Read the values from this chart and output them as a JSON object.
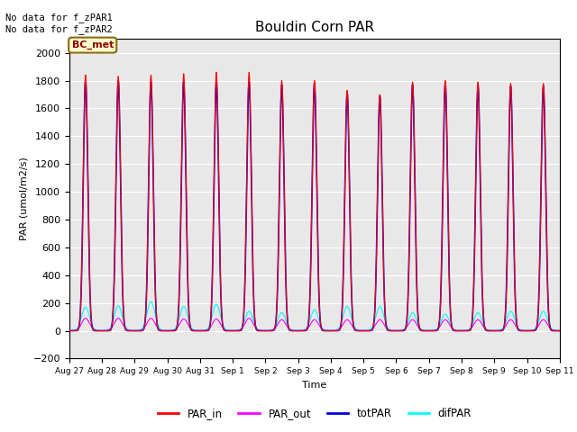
{
  "title": "Bouldin Corn PAR",
  "ylabel": "PAR (umol/m2/s)",
  "xlabel": "Time",
  "ylim": [
    -200,
    2100
  ],
  "yticks": [
    -200,
    0,
    200,
    400,
    600,
    800,
    1000,
    1200,
    1400,
    1600,
    1800,
    2000
  ],
  "annotation_text": "No data for f_zPAR1\nNo data for f_zPAR2",
  "legend_label": "BC_met",
  "legend_box_color": "#ffffcc",
  "legend_box_edge_color": "#8b6914",
  "n_days": 15,
  "colors": {
    "PAR_in": "#ff0000",
    "PAR_out": "#ff00ff",
    "totPAR": "#0000dd",
    "difPAR": "#00ffff"
  },
  "bg_color": "#e8e8e8",
  "tick_labels": [
    "Aug 27",
    "Aug 28",
    "Aug 29",
    "Aug 30",
    "Aug 31",
    "Sep 1",
    "Sep 2",
    "Sep 3",
    "Sep 4",
    "Sep 5",
    "Sep 6",
    "Sep 7",
    "Sep 8",
    "Sep 9",
    "Sep 10",
    "Sep 11"
  ],
  "par_in_peaks": [
    1840,
    1830,
    1840,
    1850,
    1860,
    1860,
    1800,
    1800,
    1730,
    1700,
    1790,
    1800,
    1790,
    1780,
    1780
  ],
  "par_out_peaks": [
    90,
    90,
    90,
    85,
    85,
    90,
    80,
    80,
    80,
    80,
    80,
    80,
    80,
    80,
    80
  ],
  "totpar_peaks": [
    1800,
    1800,
    1790,
    1790,
    1785,
    1790,
    1770,
    1780,
    1710,
    1690,
    1770,
    1780,
    1765,
    1760,
    1760
  ],
  "difpar_peaks": [
    170,
    180,
    210,
    175,
    190,
    140,
    130,
    150,
    175,
    175,
    130,
    120,
    130,
    140,
    140
  ]
}
